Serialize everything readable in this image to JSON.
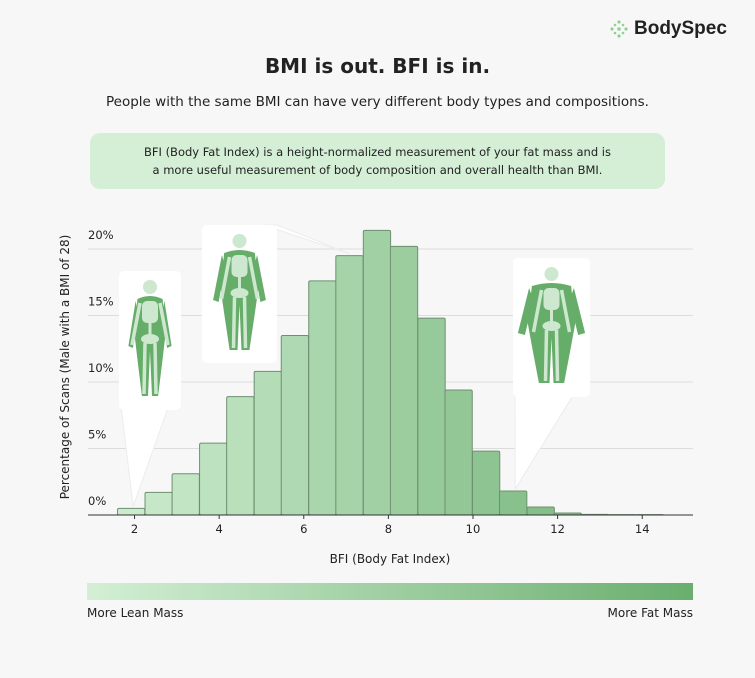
{
  "brand": {
    "name": "BodySpec",
    "logo_icon": "dots-cross-icon"
  },
  "header": {
    "title": "BMI is out. BFI is in.",
    "subtitle": "People with the same BMI can have very different body types and compositions.",
    "info_line1": "BFI (Body Fat Index) is a height-normalized measurement of your fat mass and is",
    "info_line2": "a more useful measurement of body composition and overall health than BMI."
  },
  "colors": {
    "light": "#d3efd5",
    "dark": "#6aae6e",
    "info_bg": "#d4efd6",
    "figure": "#66ad6a",
    "bone": "#cde8cf"
  },
  "chart_data": {
    "type": "bar",
    "title": "",
    "xlabel": "BFI (Body Fat Index)",
    "ylabel": "Percentage of Scans (Male with a BMI of 28)",
    "xlim": [
      0.9,
      15.2
    ],
    "ylim": [
      0,
      21.5
    ],
    "grid": true,
    "bin_width": 0.645,
    "x_ticks": [
      "2",
      "4",
      "6",
      "8",
      "10",
      "12",
      "14"
    ],
    "x_tick_values": [
      2,
      4,
      6,
      8,
      10,
      12,
      14
    ],
    "y_ticks": [
      "0%",
      "5%",
      "10%",
      "15%",
      "20%"
    ],
    "y_tick_values": [
      0,
      5,
      10,
      15,
      20
    ],
    "x": [
      1.92,
      2.57,
      3.21,
      3.86,
      4.5,
      5.15,
      5.79,
      6.44,
      7.08,
      7.73,
      8.37,
      9.02,
      9.66,
      10.31,
      10.95,
      11.6,
      12.24,
      12.89,
      13.53,
      14.18
    ],
    "values": [
      0.5,
      1.7,
      3.1,
      5.4,
      8.9,
      10.8,
      13.5,
      17.6,
      19.5,
      21.4,
      20.2,
      14.8,
      9.4,
      4.8,
      1.8,
      0.6,
      0.15,
      0.05,
      0.03,
      0.03
    ]
  },
  "callouts": [
    {
      "figure": "lean-body-figure-icon",
      "points_to_bfi": 1.92
    },
    {
      "figure": "medium-body-figure-icon",
      "points_to_bfi": 7.08
    },
    {
      "figure": "fat-body-figure-icon",
      "points_to_bfi": 10.95
    }
  ],
  "scale": {
    "left_label": "More Lean Mass",
    "right_label": "More Fat Mass"
  }
}
